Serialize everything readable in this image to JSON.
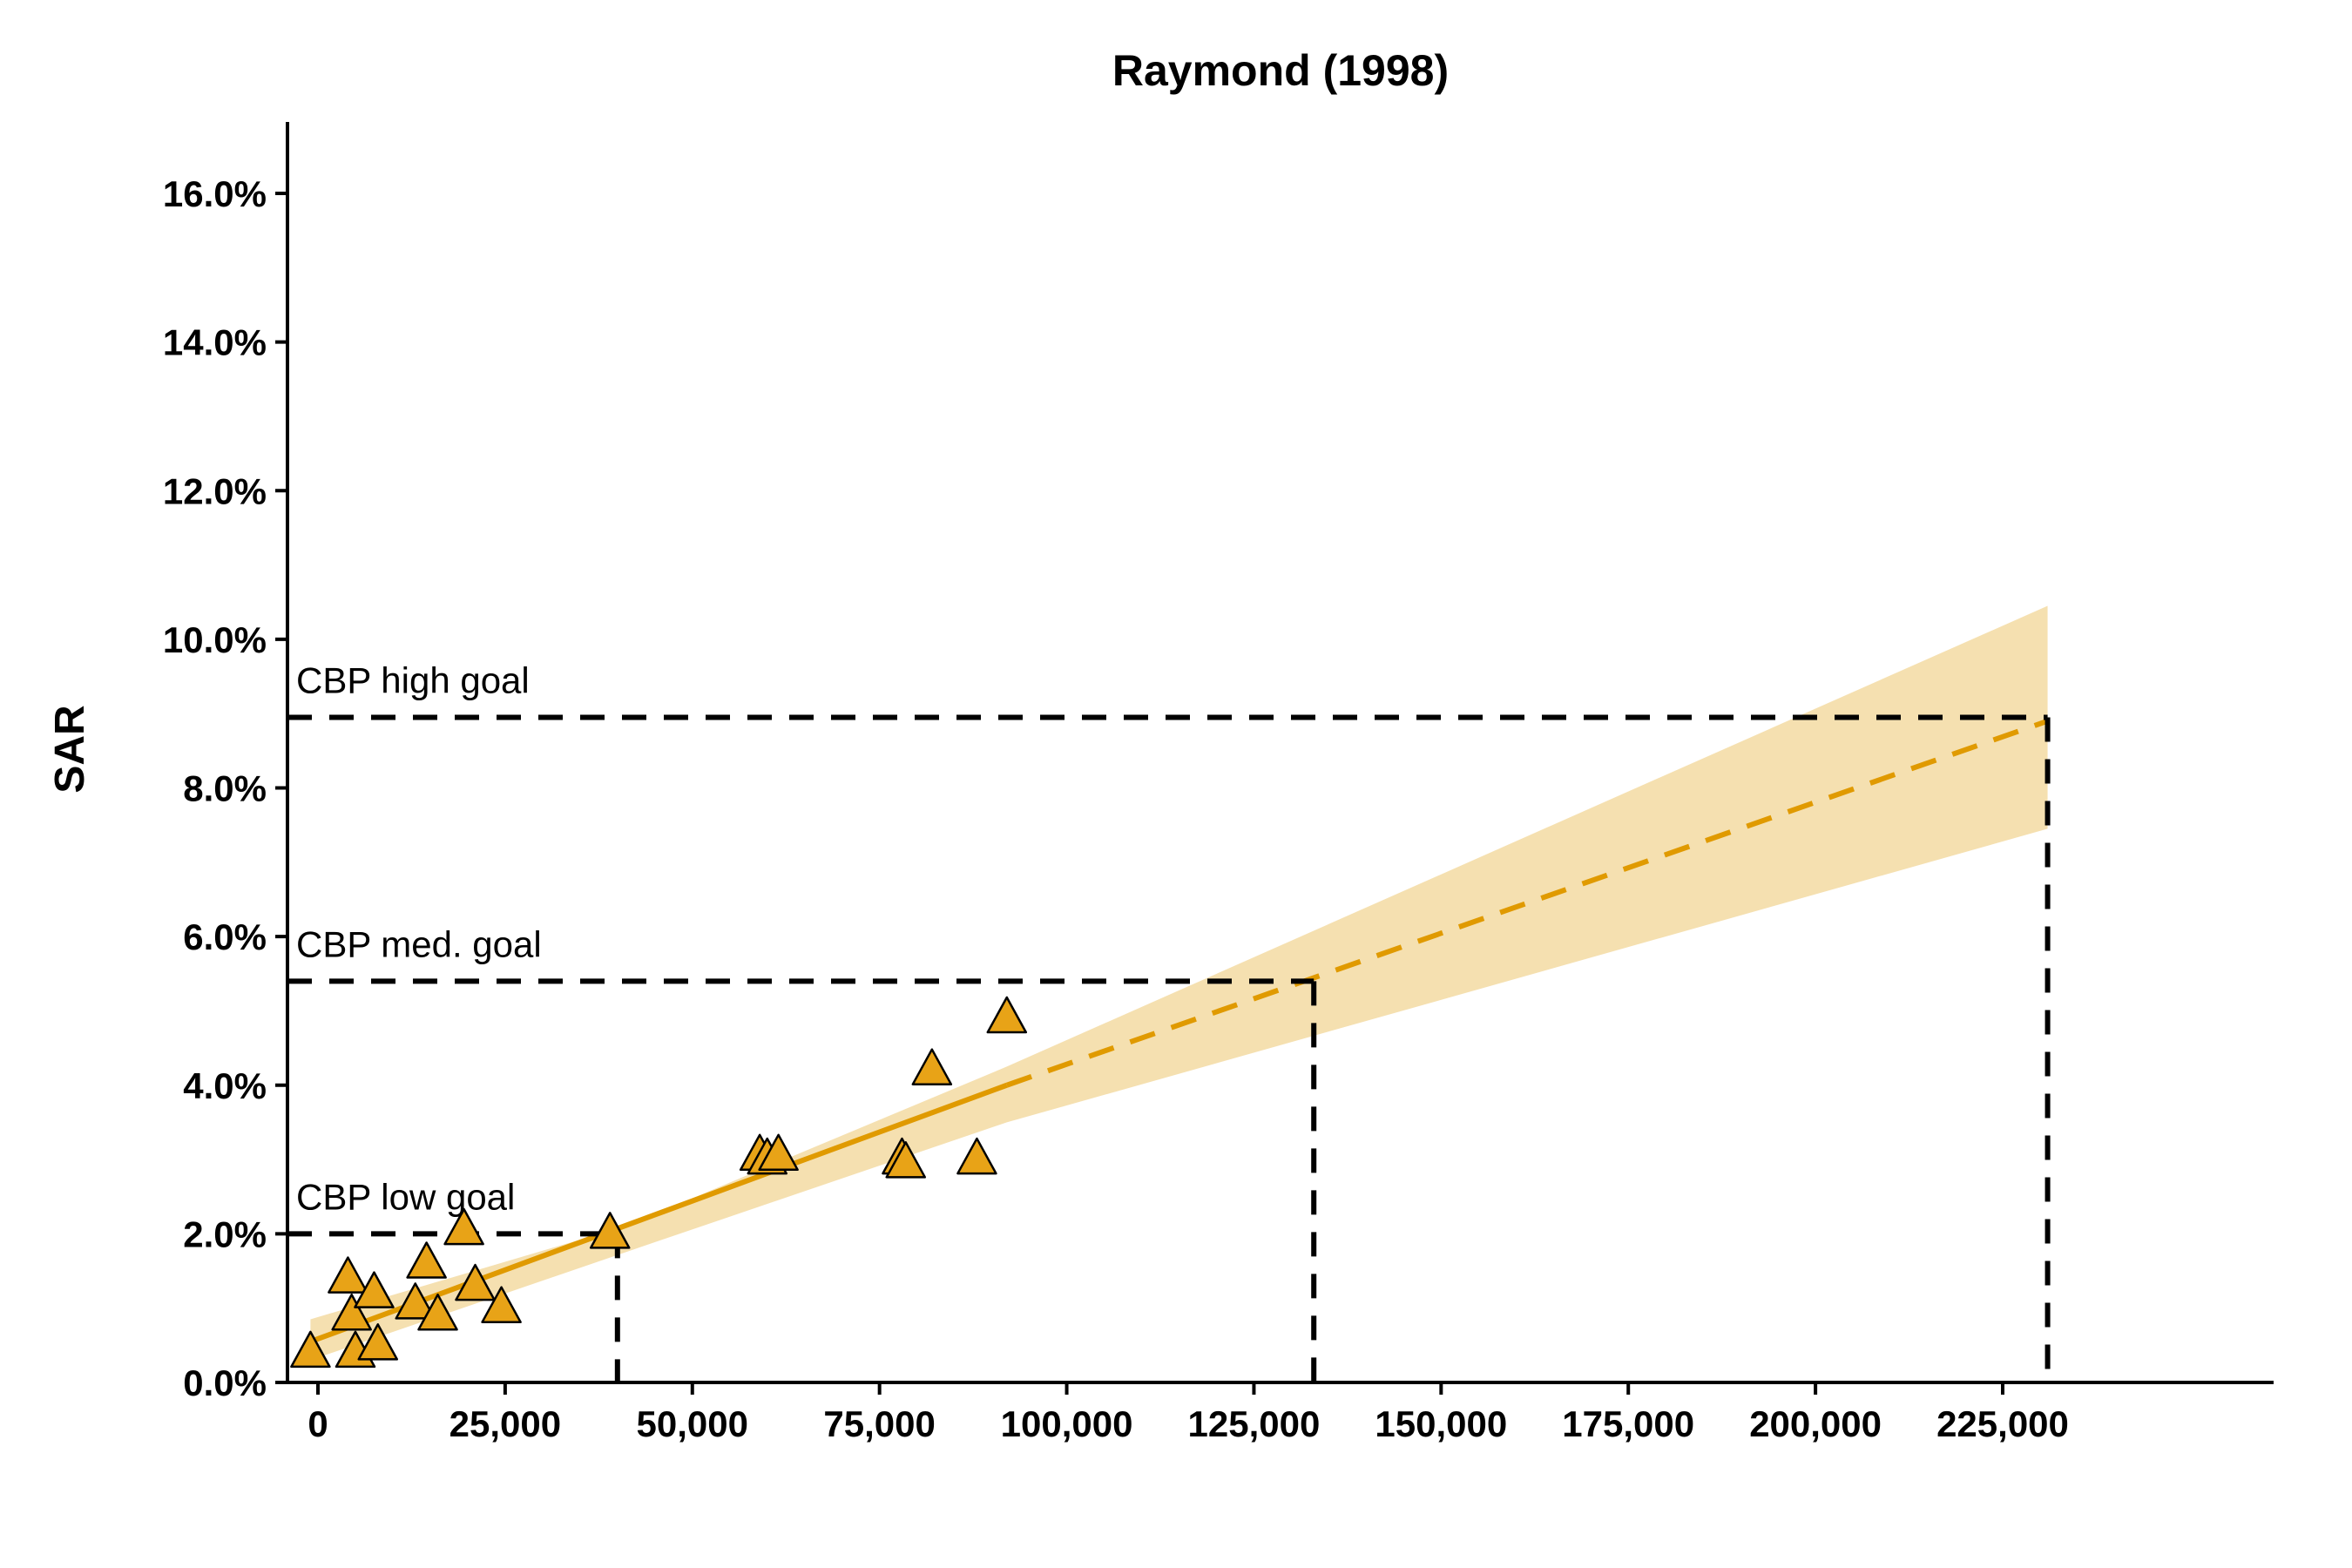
{
  "chart_data": {
    "type": "scatter",
    "title": "Raymond (1998)",
    "xlabel": "",
    "ylabel": "SAR",
    "xlim": [
      -3000,
      242000
    ],
    "ylim": [
      0,
      17
    ],
    "x_ticks": [
      0,
      25000,
      50000,
      75000,
      100000,
      125000,
      150000,
      175000,
      200000,
      225000
    ],
    "x_tick_labels": [
      "0",
      "25,000",
      "50,000",
      "75,000",
      "100,000",
      "125,000",
      "150,000",
      "175,000",
      "200,000",
      "225,000"
    ],
    "y_ticks": [
      0,
      2,
      4,
      6,
      8,
      10,
      12,
      14,
      16
    ],
    "y_tick_labels": [
      "0.0%",
      "2.0%",
      "4.0%",
      "6.0%",
      "8.0%",
      "10.0%",
      "12.0%",
      "14.0%",
      "16.0%"
    ],
    "grid": false,
    "colors": {
      "points": "#E8A317",
      "point_outline": "#000000",
      "fit_line": "#E09A00",
      "confidence_band": "#F5E0B0",
      "goal_lines": "#000000"
    },
    "points": [
      {
        "x": -1000,
        "y": 0.4
      },
      {
        "x": 4000,
        "y": 1.4
      },
      {
        "x": 4500,
        "y": 0.9
      },
      {
        "x": 5000,
        "y": 0.4
      },
      {
        "x": 7500,
        "y": 1.2
      },
      {
        "x": 8000,
        "y": 0.5
      },
      {
        "x": 13000,
        "y": 1.05
      },
      {
        "x": 14500,
        "y": 1.6
      },
      {
        "x": 16000,
        "y": 0.9
      },
      {
        "x": 19500,
        "y": 2.05
      },
      {
        "x": 21000,
        "y": 1.3
      },
      {
        "x": 24500,
        "y": 1.0
      },
      {
        "x": 39000,
        "y": 2.0
      },
      {
        "x": 59000,
        "y": 3.05
      },
      {
        "x": 60000,
        "y": 3.0
      },
      {
        "x": 61500,
        "y": 3.05
      },
      {
        "x": 78000,
        "y": 3.0
      },
      {
        "x": 78500,
        "y": 2.95
      },
      {
        "x": 82000,
        "y": 4.2
      },
      {
        "x": 88000,
        "y": 3.0
      },
      {
        "x": 92000,
        "y": 4.9
      }
    ],
    "fit": {
      "solid": [
        [
          -1000,
          0.55
        ],
        [
          92000,
          4.0
        ]
      ],
      "dashed": [
        [
          92000,
          4.0
        ],
        [
          231000,
          8.9
        ]
      ],
      "band_upper": [
        [
          -1000,
          0.85
        ],
        [
          41000,
          2.1
        ],
        [
          92000,
          4.25
        ],
        [
          231000,
          10.45
        ]
      ],
      "band_lower": [
        [
          -1000,
          0.3
        ],
        [
          41000,
          1.75
        ],
        [
          92000,
          3.5
        ],
        [
          231000,
          7.45
        ]
      ]
    },
    "goals": [
      {
        "name": "CBP low goal",
        "sar": 2.0,
        "x": 40000
      },
      {
        "name": "CBP med. goal",
        "sar": 5.4,
        "x": 133000
      },
      {
        "name": "CBP high goal",
        "sar": 8.95,
        "x": 231000
      }
    ]
  }
}
